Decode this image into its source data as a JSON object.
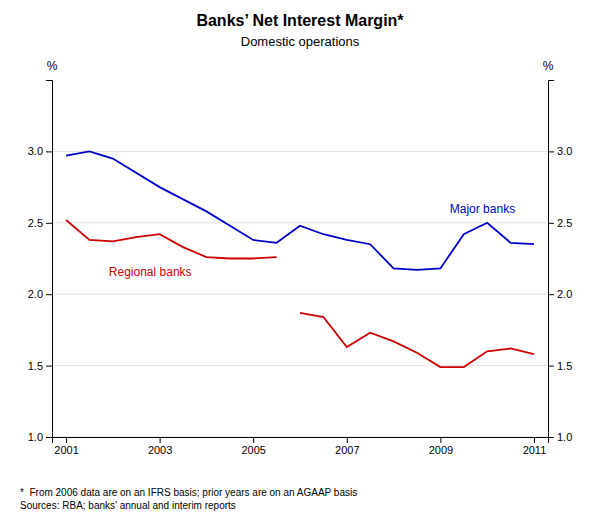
{
  "chart_data": {
    "type": "line",
    "title": "Banks’ Net Interest Margin*",
    "subtitle": "Domestic operations",
    "ylabel": "%",
    "y2label": "%",
    "footnote": "*  From 2006 data are on an IFRS basis; prior years are on an AGAAP basis\nSources: RBA; banks’ annual and interim reports",
    "xlim": [
      2000.7,
      2011.3
    ],
    "xticks": [
      2001,
      2003,
      2005,
      2007,
      2009,
      2011
    ],
    "ylim": [
      1.0,
      3.5
    ],
    "yticks": [
      {
        "value": 1.0,
        "label": "1.0"
      },
      1.5,
      {
        "value": 2.0,
        "label": "2.0"
      },
      2.5,
      {
        "value": 3.0,
        "label": "3.0"
      }
    ],
    "y2lim": [
      1.0,
      3.5
    ],
    "y2ticks": [
      {
        "value": 1.0,
        "label": "1.0"
      },
      1.5,
      {
        "value": 2.0,
        "label": "2.0"
      },
      2.5,
      {
        "value": 3.0,
        "label": "3.0"
      }
    ],
    "grid": true,
    "series": [
      {
        "name": "Major banks",
        "color": "#0000CC",
        "x": [
          2001,
          2001.5,
          2002,
          2003,
          2004,
          2005,
          2005.5,
          2006,
          2006.5,
          2007,
          2007.5,
          2008,
          2008.5,
          2009,
          2009.5,
          2010,
          2010.5,
          2011
        ],
        "values": [
          2.97,
          3.0,
          2.95,
          2.75,
          2.58,
          2.38,
          2.36,
          2.48,
          2.42,
          2.38,
          2.35,
          2.18,
          2.17,
          2.18,
          2.42,
          2.5,
          2.36,
          2.35
        ]
      },
      {
        "name": "Regional banks",
        "color": "#CC0000",
        "x": [
          2001,
          2001.5,
          2002,
          2002.5,
          2003,
          2003.5,
          2004,
          2004.5,
          2005,
          2005.5
        ],
        "values": [
          2.52,
          2.38,
          2.37,
          2.4,
          2.42,
          2.33,
          2.26,
          2.25,
          2.25,
          2.26
        ]
      },
      {
        "color": "#CC0000",
        "x": [
          2006,
          2006.5,
          2007,
          2007.5,
          2008,
          2008.5,
          2009,
          2009.5,
          2010,
          2010.5,
          2011
        ],
        "values": [
          1.87,
          1.84,
          1.63,
          1.73,
          1.67,
          1.59,
          1.49,
          1.49,
          1.6,
          1.62,
          1.58
        ]
      }
    ]
  }
}
